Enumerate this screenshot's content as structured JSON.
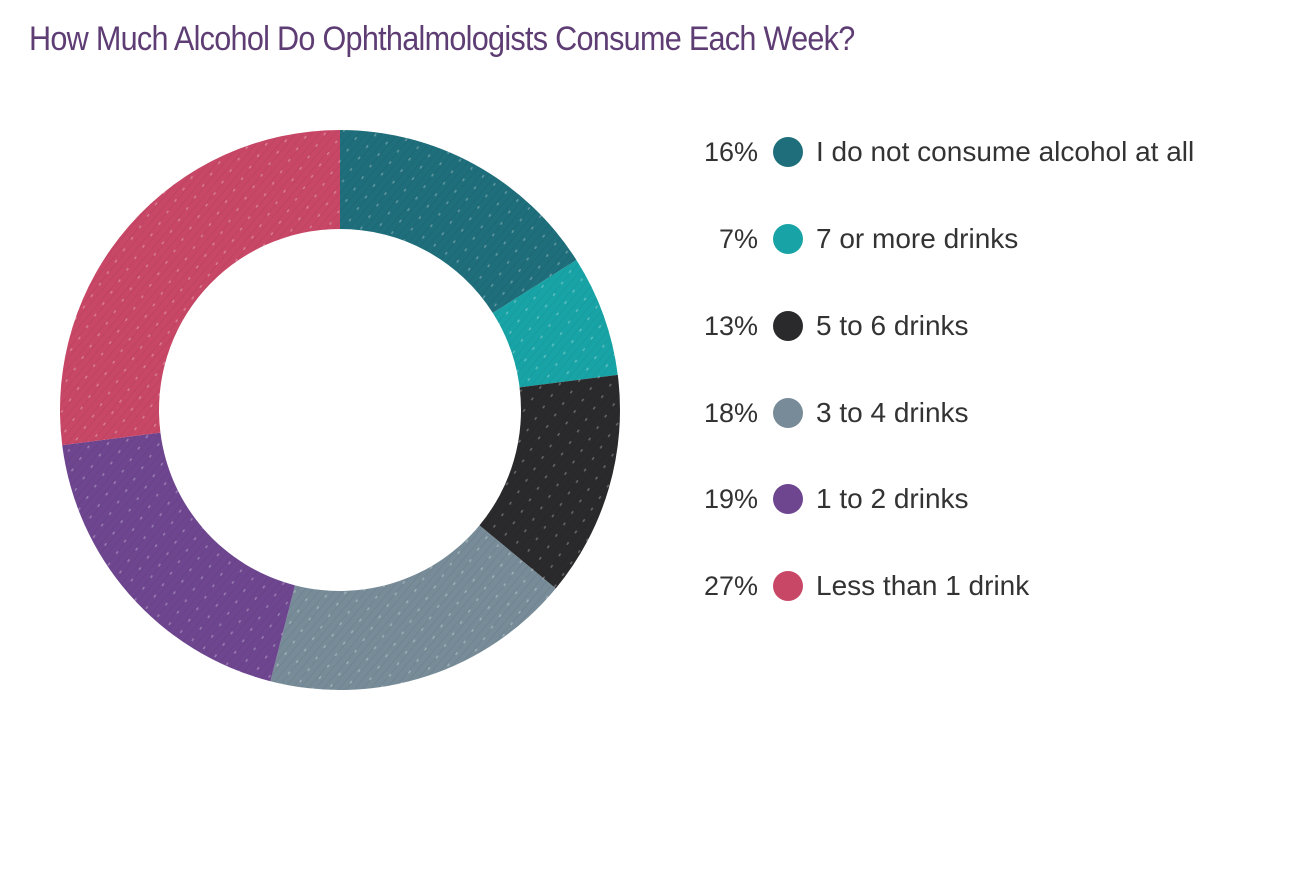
{
  "chart_data": {
    "type": "pie",
    "title": "How Much Alcohol Do Ophthalmologists Consume Each Week?",
    "donut": true,
    "legend_position": "right",
    "slices": [
      {
        "label": "I do not consume alcohol at all",
        "value": 16,
        "pct_label": "16%",
        "color": "#1f6e7b"
      },
      {
        "label": "7 or more drinks",
        "value": 7,
        "pct_label": "7%",
        "color": "#18a4a6"
      },
      {
        "label": "5 to 6 drinks",
        "value": 13,
        "pct_label": "13%",
        "color": "#2a2a2c"
      },
      {
        "label": "3 to 4 drinks",
        "value": 18,
        "pct_label": "18%",
        "color": "#778c98"
      },
      {
        "label": "1 to 2 drinks",
        "value": 19,
        "pct_label": "19%",
        "color": "#6e4690"
      },
      {
        "label": "Less than 1 drink",
        "value": 27,
        "pct_label": "27%",
        "color": "#c84766"
      }
    ]
  }
}
